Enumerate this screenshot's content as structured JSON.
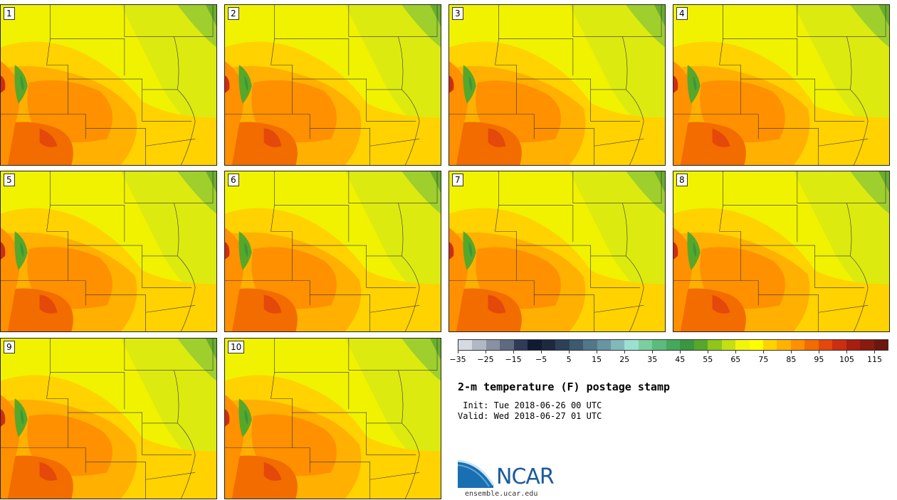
{
  "panels": [
    {
      "label": "1"
    },
    {
      "label": "2"
    },
    {
      "label": "3"
    },
    {
      "label": "4"
    },
    {
      "label": "5"
    },
    {
      "label": "6"
    },
    {
      "label": "7"
    },
    {
      "label": "8"
    },
    {
      "label": "9"
    },
    {
      "label": "10"
    }
  ],
  "colorbar": {
    "colors": [
      "#d6dbe2",
      "#b0b8c4",
      "#8891a2",
      "#5e6a80",
      "#303b58",
      "#101a33",
      "#1c2a40",
      "#2c4158",
      "#3e5a70",
      "#517789",
      "#6795a2",
      "#82b8bb",
      "#9be0d0",
      "#7bcf9e",
      "#5cbb7c",
      "#46a85c",
      "#3a9640",
      "#56a82a",
      "#8ec61c",
      "#c4df12",
      "#f2f50a",
      "#ffff00",
      "#ffd200",
      "#ffb300",
      "#ff9000",
      "#f26c00",
      "#e4480a",
      "#cc2e10",
      "#a81e10",
      "#8a1a0f",
      "#6b170d"
    ],
    "tick_labels": [
      "−35",
      "−25",
      "−15",
      "−5",
      "5",
      "15",
      "25",
      "35",
      "45",
      "55",
      "65",
      "75",
      "85",
      "95",
      "105",
      "115"
    ]
  },
  "title": "2-m temperature (F) postage stamp",
  "init": " Init: Tue 2018-06-26 00 UTC",
  "valid": "Valid: Wed 2018-06-27 01 UTC",
  "logo_text": "NCAR",
  "site": "ensemble.ucar.edu"
}
